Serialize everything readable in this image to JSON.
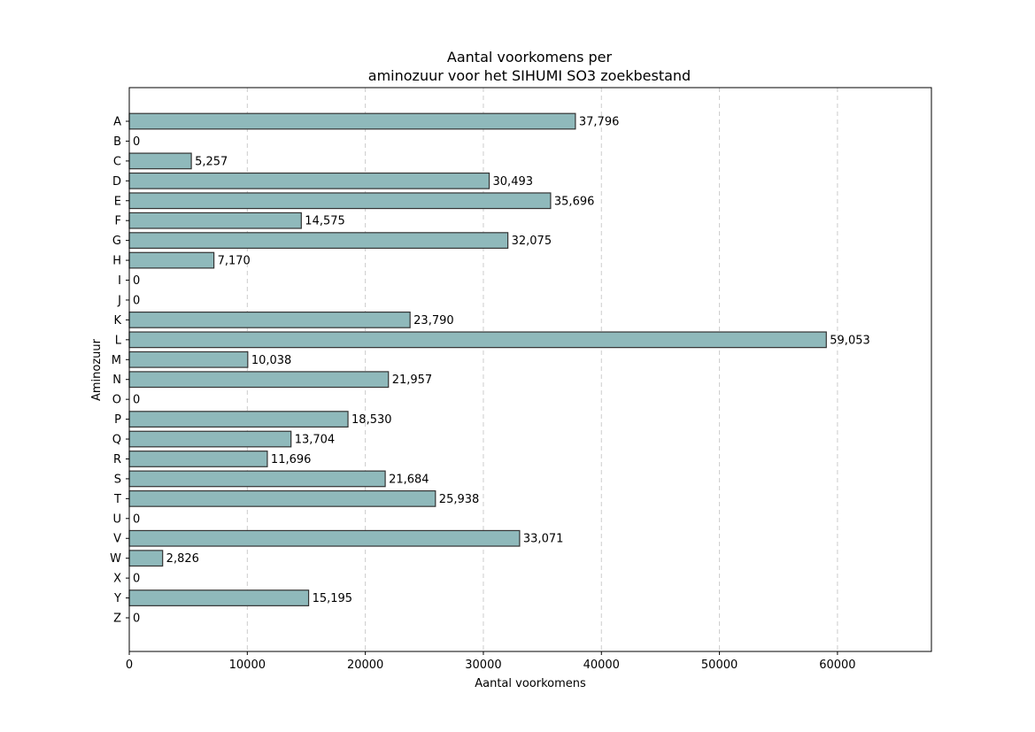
{
  "chart_data": {
    "type": "bar",
    "orientation": "horizontal",
    "title_lines": [
      "Aantal voorkomens per",
      "aminozuur voor het SIHUMI SO3 zoekbestand"
    ],
    "xlabel": "Aantal voorkomens",
    "ylabel": "Aminozuur",
    "categories": [
      "A",
      "B",
      "C",
      "D",
      "E",
      "F",
      "G",
      "H",
      "I",
      "J",
      "K",
      "L",
      "M",
      "N",
      "O",
      "P",
      "Q",
      "R",
      "S",
      "T",
      "U",
      "V",
      "W",
      "X",
      "Y",
      "Z"
    ],
    "values": [
      37796,
      0,
      5257,
      30493,
      35696,
      14575,
      32075,
      7170,
      0,
      0,
      23790,
      59053,
      10038,
      21957,
      0,
      18530,
      13704,
      11696,
      21684,
      25938,
      0,
      33071,
      2826,
      0,
      15195,
      0
    ],
    "value_labels": [
      "37,796",
      "0",
      "5,257",
      "30,493",
      "35,696",
      "14,575",
      "32,075",
      "7,170",
      "0",
      "0",
      "23,790",
      "59,053",
      "10,038",
      "21,957",
      "0",
      "18,530",
      "13,704",
      "11,696",
      "21,684",
      "25,938",
      "0",
      "33,071",
      "2,826",
      "0",
      "15,195",
      "0"
    ],
    "xlim": [
      0,
      67958
    ],
    "xticks": [
      0,
      10000,
      20000,
      30000,
      40000,
      50000,
      60000
    ],
    "xtick_labels": [
      "0",
      "10000",
      "20000",
      "30000",
      "40000",
      "50000",
      "60000"
    ],
    "grid": "x-dashed",
    "bar_color": "#8fb9bb",
    "bar_edge_color": "#333333"
  }
}
